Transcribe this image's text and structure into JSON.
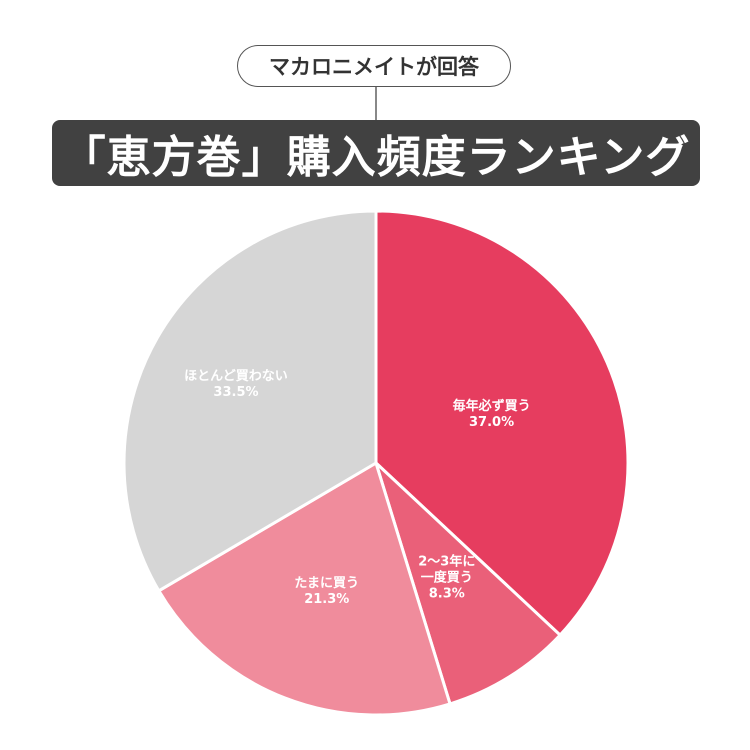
{
  "header": {
    "badge": "マカロニメイトが回答",
    "title": "「恵方巻」購入頻度ランキング"
  },
  "chart_data": {
    "type": "pie",
    "start": "top",
    "direction": "clockwise",
    "slices": [
      {
        "label": [
          "毎年必ず買う"
        ],
        "value": 37.0,
        "value_label": "37.0%",
        "color": "#e63d5f"
      },
      {
        "label": [
          "2〜3年に",
          "一度買う"
        ],
        "value": 8.3,
        "value_label": "8.3%",
        "color": "#ea6079"
      },
      {
        "label": [
          "たまに買う"
        ],
        "value": 21.3,
        "value_label": "21.3%",
        "color": "#f08c9c"
      },
      {
        "label": [
          "ほとんど買わない"
        ],
        "value": 33.5,
        "value_label": "33.5%",
        "color": "#d6d6d6"
      }
    ]
  }
}
